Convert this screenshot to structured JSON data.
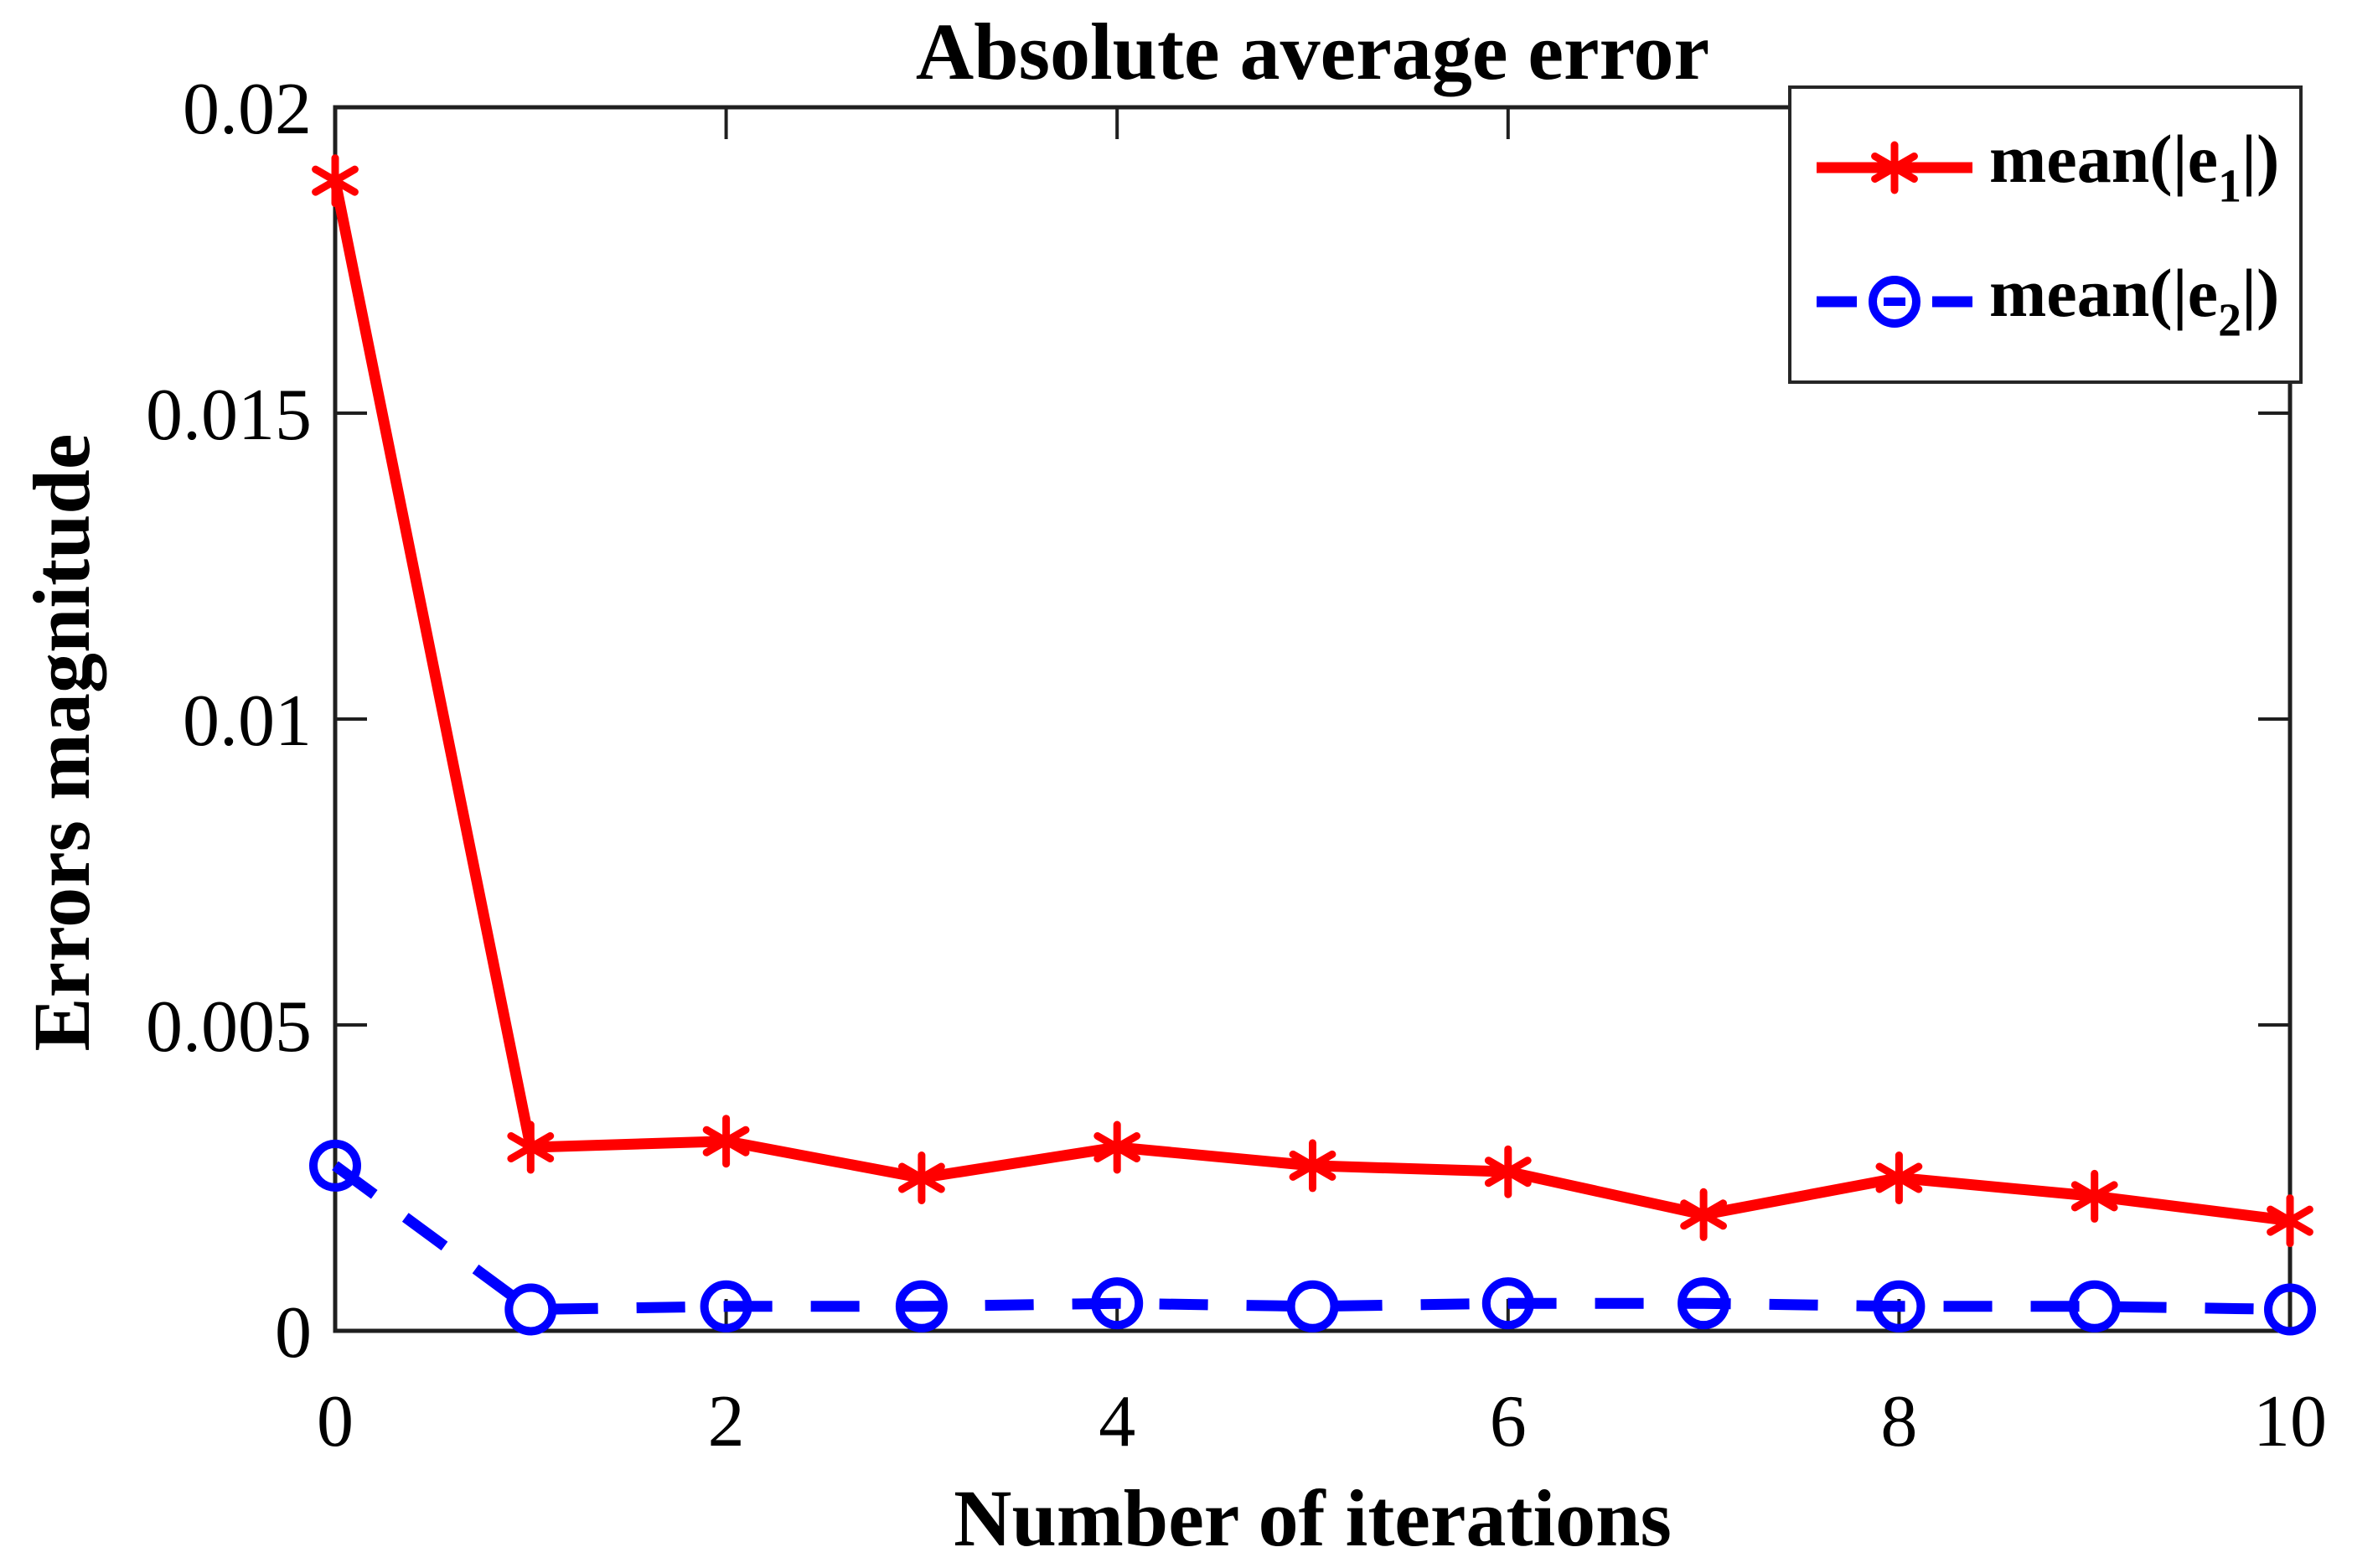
{
  "figure": {
    "background": "#ffffff",
    "axis_color": "#1f1f1f",
    "text_color": "#000000",
    "legend_border_color": "#262626"
  },
  "chart_data": {
    "type": "line",
    "title": "Absolute average error",
    "xlabel": "Number of iterations",
    "ylabel": "Errors magnitude",
    "xlim": [
      0,
      10
    ],
    "ylim": [
      0,
      0.02
    ],
    "xticks": [
      0,
      2,
      4,
      6,
      8,
      10
    ],
    "xtick_labels": [
      "0",
      "2",
      "4",
      "6",
      "8",
      "10"
    ],
    "yticks": [
      0,
      0.005,
      0.01,
      0.015,
      0.02
    ],
    "ytick_labels": [
      "0",
      "0.005",
      "0.01",
      "0.015",
      "0.02"
    ],
    "grid": false,
    "box": true,
    "legend_position": "top-right",
    "x": [
      0,
      1,
      2,
      3,
      4,
      5,
      6,
      7,
      8,
      9,
      10
    ],
    "series": [
      {
        "name": "mean(|e1|)",
        "label_parts": {
          "prefix": "mean(|e",
          "sub": "1",
          "suffix": "|)"
        },
        "color": "#ff0000",
        "line_style": "solid",
        "marker": "asterisk",
        "values": [
          0.0188,
          0.003,
          0.0031,
          0.0025,
          0.003,
          0.0027,
          0.0026,
          0.0019,
          0.0025,
          0.0022,
          0.0018
        ]
      },
      {
        "name": "mean(|e2|)",
        "label_parts": {
          "prefix": "mean(|e",
          "sub": "2",
          "suffix": "|)"
        },
        "color": "#0000ff",
        "line_style": "dashed",
        "marker": "circle",
        "values": [
          0.0027,
          0.00035,
          0.0004,
          0.0004,
          0.00045,
          0.0004,
          0.00045,
          0.00045,
          0.0004,
          0.0004,
          0.00035
        ]
      }
    ]
  }
}
